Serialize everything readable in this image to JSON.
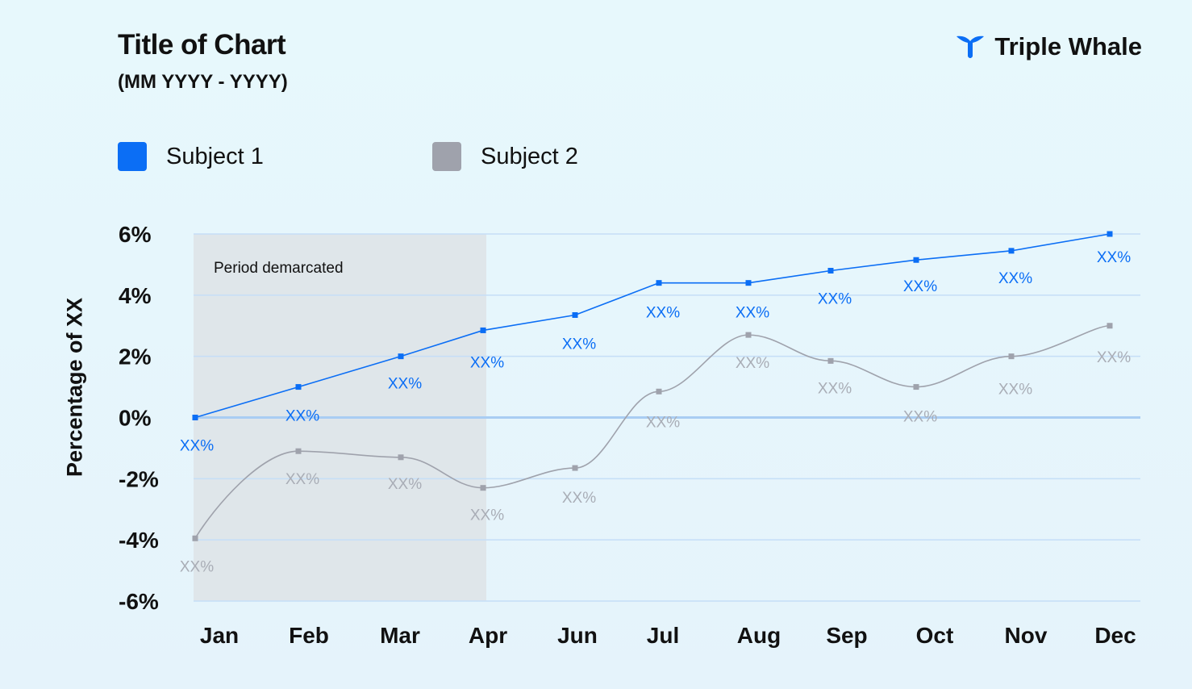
{
  "header": {
    "title": "Title of Chart",
    "subtitle": "(MM YYYY - YYYY)",
    "brand": "Triple Whale",
    "brand_icon": "whale-tail-icon"
  },
  "legend": [
    {
      "label": "Subject 1",
      "color": "#0b6ef5"
    },
    {
      "label": "Subject 2",
      "color": "#9fa2ac"
    }
  ],
  "chart_data": {
    "type": "line",
    "title": "Title of Chart",
    "subtitle": "(MM YYYY - YYYY)",
    "ylabel": "Percentage of XX",
    "xlabel": "",
    "categories": [
      "Jan",
      "Feb",
      "Mar",
      "Apr",
      "Jun",
      "Jul",
      "Aug",
      "Sep",
      "Oct",
      "Nov",
      "Dec"
    ],
    "y_ticks": [
      "6%",
      "4%",
      "2%",
      "0%",
      "-2%",
      "-4%",
      "-6%"
    ],
    "ylim": [
      -6,
      6
    ],
    "grid": true,
    "legend_position": "top-left",
    "shaded_region": {
      "label": "Period demarcated",
      "from": "Jan",
      "to": "Apr"
    },
    "series": [
      {
        "name": "Subject 1",
        "color": "#0b6ef5",
        "smooth": false,
        "values": [
          0,
          1,
          2,
          2.85,
          3.35,
          4.4,
          4.4,
          4.8,
          5.15,
          5.45,
          6
        ],
        "data_labels": [
          "XX%",
          "XX%",
          "XX%",
          "XX%",
          "XX%",
          "XX%",
          "XX%",
          "XX%",
          "XX%",
          "XX%",
          "XX%"
        ]
      },
      {
        "name": "Subject 2",
        "color": "#9fa2ac",
        "smooth": true,
        "values": [
          -3.95,
          -1.1,
          -1.3,
          -2.3,
          -1.65,
          0.85,
          2.7,
          1.85,
          1.0,
          2.0,
          3.0
        ],
        "data_labels": [
          "XX%",
          "XX%",
          "XX%",
          "XX%",
          "XX%",
          "XX%",
          "XX%",
          "XX%",
          "XX%",
          "XX%",
          "XX%"
        ]
      }
    ]
  }
}
